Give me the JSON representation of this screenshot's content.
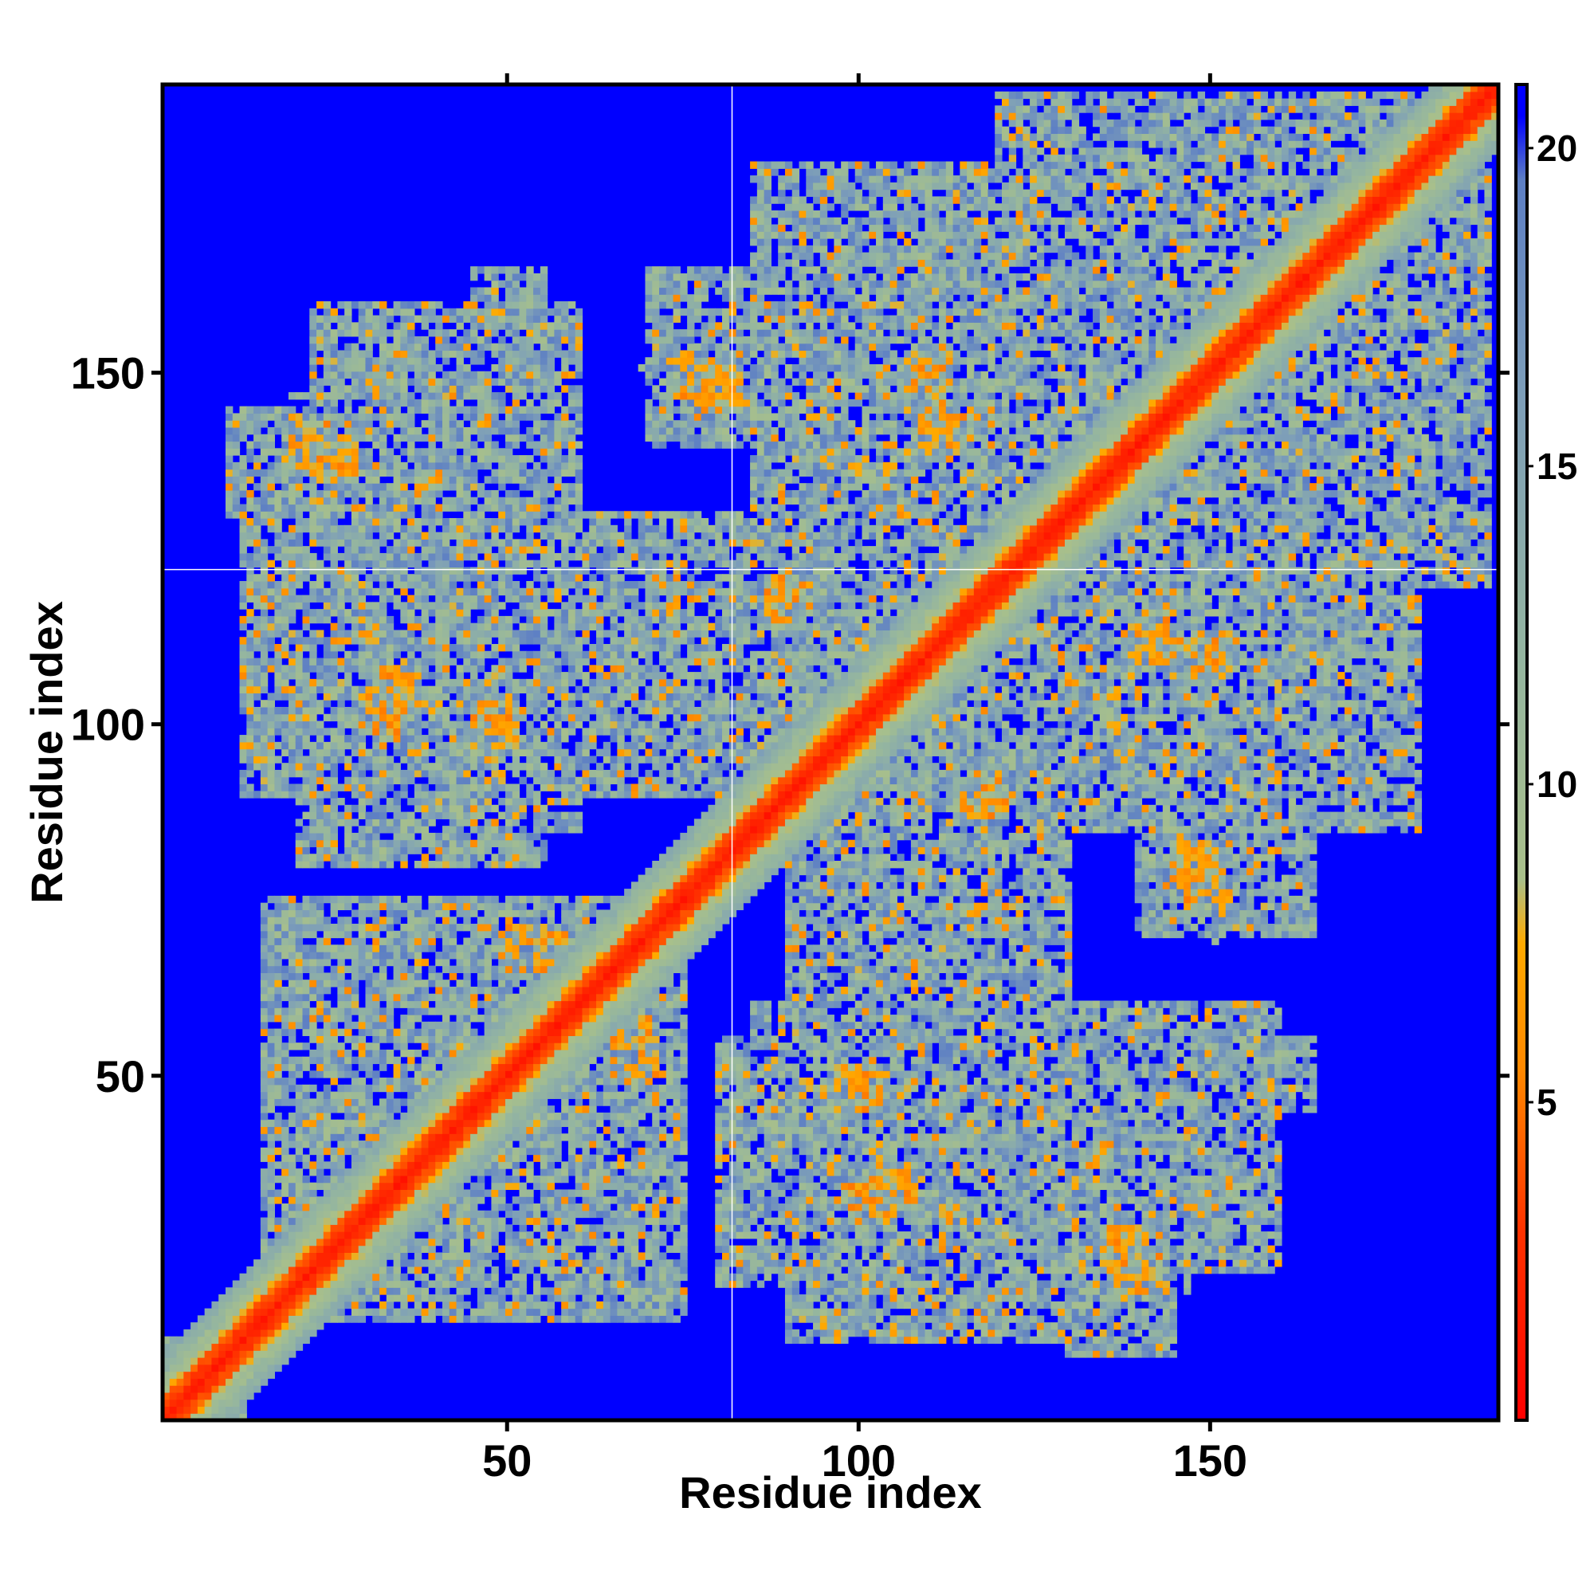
{
  "chart_data": {
    "type": "heatmap",
    "title": "",
    "xlabel": "Residue index",
    "ylabel": "Residue index",
    "n_residues": 191,
    "xlim": [
      1,
      191
    ],
    "ylim": [
      1,
      191
    ],
    "x_ticks": [
      50,
      100,
      150
    ],
    "y_ticks": [
      50,
      100,
      150
    ],
    "colorbar": {
      "ticks": [
        5,
        10,
        15,
        20
      ],
      "range": [
        0,
        21
      ],
      "stops": [
        {
          "value": 0,
          "color": "#ff0000"
        },
        {
          "value": 3,
          "color": "#ff3300"
        },
        {
          "value": 5.5,
          "color": "#ff8800"
        },
        {
          "value": 7.5,
          "color": "#ffaa00"
        },
        {
          "value": 8.5,
          "color": "#a9c08a"
        },
        {
          "value": 12,
          "color": "#94b5a0"
        },
        {
          "value": 16,
          "color": "#7e9fb8"
        },
        {
          "value": 19.5,
          "color": "#5d7fc4"
        },
        {
          "value": 20.5,
          "color": "#0000ff"
        },
        {
          "value": 21,
          "color": "#0000ff"
        }
      ]
    },
    "background_value": 21,
    "background_color": "#0000ff",
    "reference_lines": {
      "x": 82,
      "y": 122
    },
    "diagonal_band": {
      "core_width": 3,
      "halo_width": 9
    },
    "contact_regions": [
      {
        "x": [
          1,
          10
        ],
        "y": [
          1,
          12
        ]
      },
      {
        "x": [
          15,
          75
        ],
        "y": [
          15,
          75
        ]
      },
      {
        "x": [
          12,
          45
        ],
        "y": [
          90,
          130
        ]
      },
      {
        "x": [
          40,
          60
        ],
        "y": [
          85,
          125
        ]
      },
      {
        "x": [
          22,
          60
        ],
        "y": [
          125,
          160
        ]
      },
      {
        "x": [
          60,
          95
        ],
        "y": [
          90,
          125
        ]
      },
      {
        "x": [
          70,
          100
        ],
        "y": [
          140,
          165
        ]
      },
      {
        "x": [
          85,
          120
        ],
        "y": [
          110,
          180
        ]
      },
      {
        "x": [
          120,
          160
        ],
        "y": [
          100,
          175
        ]
      },
      {
        "x": [
          130,
          160
        ],
        "y": [
          160,
          185
        ]
      },
      {
        "x": [
          165,
          190
        ],
        "y": [
          120,
          190
        ]
      },
      {
        "x": [
          90,
          120
        ],
        "y": [
          25,
          60
        ]
      },
      {
        "x": [
          80,
          140
        ],
        "y": [
          20,
          55
        ]
      },
      {
        "x": [
          130,
          145
        ],
        "y": [
          10,
          35
        ]
      },
      {
        "x": [
          140,
          165
        ],
        "y": [
          70,
          95
        ]
      },
      {
        "x": [
          100,
          130
        ],
        "y": [
          60,
          100
        ]
      },
      {
        "x": [
          130,
          165
        ],
        "y": [
          45,
          55
        ]
      }
    ],
    "hotspots": [
      {
        "x": 28,
        "y": 28
      },
      {
        "x": 34,
        "y": 105
      },
      {
        "x": 48,
        "y": 100
      },
      {
        "x": 52,
        "y": 68
      },
      {
        "x": 68,
        "y": 55
      },
      {
        "x": 100,
        "y": 48
      },
      {
        "x": 102,
        "y": 32
      },
      {
        "x": 108,
        "y": 108
      },
      {
        "x": 172,
        "y": 172
      },
      {
        "x": 150,
        "y": 150
      },
      {
        "x": 76,
        "y": 150
      },
      {
        "x": 112,
        "y": 142
      },
      {
        "x": 128,
        "y": 130
      },
      {
        "x": 150,
        "y": 110
      },
      {
        "x": 138,
        "y": 25
      },
      {
        "x": 148,
        "y": 80
      },
      {
        "x": 22,
        "y": 140
      },
      {
        "x": 90,
        "y": 118
      }
    ]
  }
}
